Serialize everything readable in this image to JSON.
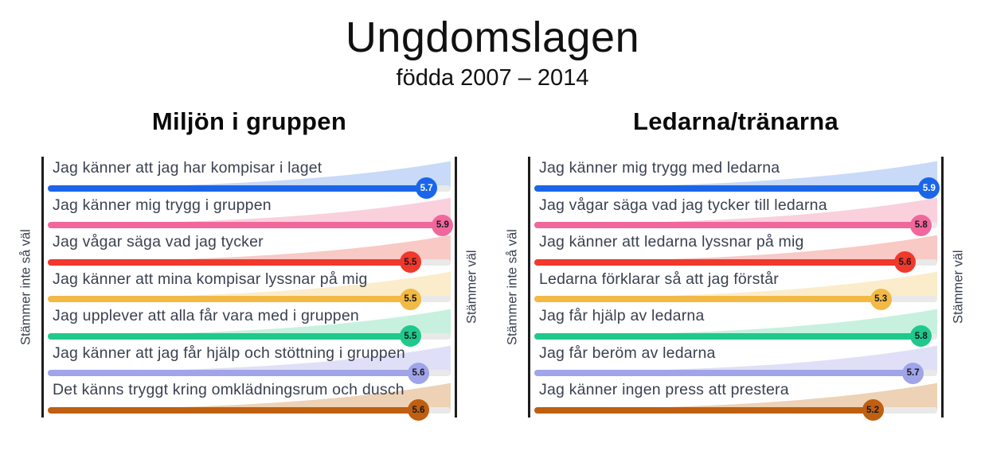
{
  "title": "Ungdomslagen",
  "subtitle": "födda 2007 – 2014",
  "axis": {
    "left": "Stämmer inte så väl",
    "right": "Stämmer väl"
  },
  "scale": {
    "min": 1,
    "max": 6
  },
  "colors": {
    "blue": {
      "main": "#1b66e8",
      "light": "#c8daf8",
      "text": "#ffffff"
    },
    "pink": {
      "main": "#f1679c",
      "light": "#fad0dd",
      "text": "#16181d"
    },
    "red": {
      "main": "#f0382b",
      "light": "#f8c9c5",
      "text": "#16181d"
    },
    "amber": {
      "main": "#f2b944",
      "light": "#fbedcb",
      "text": "#16181d"
    },
    "green": {
      "main": "#1fc98b",
      "light": "#c7f1de",
      "text": "#16181d"
    },
    "lavender": {
      "main": "#a0a4e8",
      "light": "#dfe0f8",
      "text": "#16181d"
    },
    "brown": {
      "main": "#bf5f10",
      "light": "#eed2b5",
      "text": "#16181d"
    }
  },
  "panels": [
    {
      "heading": "Miljön i gruppen",
      "items": [
        {
          "label": "Jag känner att jag har kompisar i laget",
          "value": 5.7,
          "color": "blue"
        },
        {
          "label": "Jag känner mig trygg i gruppen",
          "value": 5.9,
          "color": "pink"
        },
        {
          "label": "Jag vågar säga vad jag tycker",
          "value": 5.5,
          "color": "red"
        },
        {
          "label": "Jag känner att mina kompisar lyssnar på mig",
          "value": 5.5,
          "color": "amber"
        },
        {
          "label": "Jag upplever att alla får vara med i gruppen",
          "value": 5.5,
          "color": "green"
        },
        {
          "label": "Jag känner att jag får hjälp och stöttning i gruppen",
          "value": 5.6,
          "color": "lavender"
        },
        {
          "label": "Det känns tryggt kring omklädningsrum och dusch",
          "value": 5.6,
          "color": "brown"
        }
      ]
    },
    {
      "heading": "Ledarna/tränarna",
      "items": [
        {
          "label": "Jag känner mig trygg med ledarna",
          "value": 5.9,
          "color": "blue"
        },
        {
          "label": "Jag vågar säga vad jag tycker till ledarna",
          "value": 5.8,
          "color": "pink"
        },
        {
          "label": "Jag känner att ledarna lyssnar på mig",
          "value": 5.6,
          "color": "red"
        },
        {
          "label": "Ledarna förklarar så att jag förstår",
          "value": 5.3,
          "color": "amber"
        },
        {
          "label": "Jag får hjälp av ledarna",
          "value": 5.8,
          "color": "green"
        },
        {
          "label": "Jag får beröm av ledarna",
          "value": 5.7,
          "color": "lavender"
        },
        {
          "label": "Jag känner ingen press att prestera",
          "value": 5.2,
          "color": "brown"
        }
      ]
    }
  ],
  "chart_data": [
    {
      "type": "bar",
      "orientation": "horizontal",
      "title": "Miljön i gruppen",
      "categories": [
        "Jag känner att jag har kompisar i laget",
        "Jag känner mig trygg i gruppen",
        "Jag vågar säga vad jag tycker",
        "Jag känner att mina kompisar lyssnar på mig",
        "Jag upplever att alla får vara med i gruppen",
        "Jag känner att jag får hjälp och stöttning i gruppen",
        "Det känns tryggt kring omklädningsrum och dusch"
      ],
      "values": [
        5.7,
        5.9,
        5.5,
        5.5,
        5.5,
        5.6,
        5.6
      ],
      "bar_colors": [
        "#1b66e8",
        "#f1679c",
        "#f0382b",
        "#f2b944",
        "#1fc98b",
        "#a0a4e8",
        "#bf5f10"
      ],
      "xlabel_left": "Stämmer inte så väl",
      "xlabel_right": "Stämmer väl",
      "xlim": [
        1,
        6
      ],
      "grid": false,
      "legend": false,
      "data_labels": true
    },
    {
      "type": "bar",
      "orientation": "horizontal",
      "title": "Ledarna/tränarna",
      "categories": [
        "Jag känner mig trygg med ledarna",
        "Jag vågar säga vad jag tycker till ledarna",
        "Jag känner att ledarna lyssnar på mig",
        "Ledarna förklarar så att jag förstår",
        "Jag får hjälp av ledarna",
        "Jag får beröm av ledarna",
        "Jag känner ingen press att prestera"
      ],
      "values": [
        5.9,
        5.8,
        5.6,
        5.3,
        5.8,
        5.7,
        5.2
      ],
      "bar_colors": [
        "#1b66e8",
        "#f1679c",
        "#f0382b",
        "#f2b944",
        "#1fc98b",
        "#a0a4e8",
        "#bf5f10"
      ],
      "xlabel_left": "Stämmer inte så väl",
      "xlabel_right": "Stämmer väl",
      "xlim": [
        1,
        6
      ],
      "grid": false,
      "legend": false,
      "data_labels": true
    }
  ]
}
